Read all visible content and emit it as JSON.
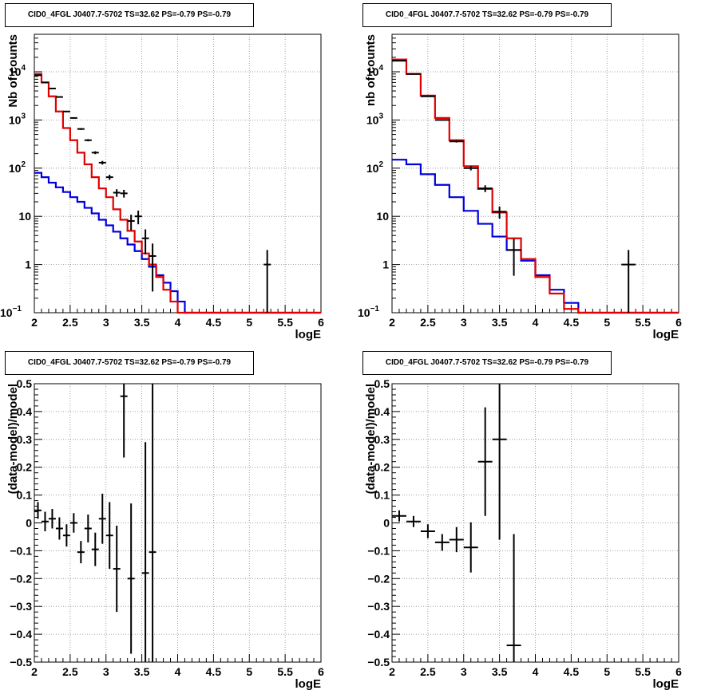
{
  "colors": {
    "data": "#000000",
    "total_model": "#e00000",
    "background_model": "#0000dd",
    "grid": "#888888"
  },
  "chart_data": [
    {
      "type": "line",
      "title": "CID0_4FGL J0407.7-5702 TS=32.62 PS=-0.79 PS=-0.79",
      "xlabel": "logE",
      "ylabel": "Nb of counts",
      "xlim": [
        2,
        6
      ],
      "ylim": [
        0.1,
        60000
      ],
      "yscale": "log",
      "grid": true,
      "xticks": [
        "2",
        "2.5",
        "3",
        "3.5",
        "4",
        "4.5",
        "5",
        "5.5",
        "6"
      ],
      "yticks": [
        {
          "v": 0.1,
          "label": "10",
          "sup": "−1"
        },
        {
          "v": 1,
          "label": "1",
          "sup": ""
        },
        {
          "v": 10,
          "label": "10",
          "sup": ""
        },
        {
          "v": 100,
          "label": "10",
          "sup": "2"
        },
        {
          "v": 1000,
          "label": "10",
          "sup": "3"
        },
        {
          "v": 10000,
          "label": "10",
          "sup": "4"
        }
      ],
      "bin_width": 0.1,
      "series": [
        {
          "role": "total_model",
          "x_start": 2.0,
          "values": [
            9000,
            6000,
            3100,
            1500,
            680,
            380,
            210,
            120,
            65,
            38,
            25,
            14,
            8.5,
            5,
            3,
            1.7,
            1.0,
            0.55,
            0.3,
            0.17,
            0.1,
            0.1,
            0.1,
            0.1,
            0.1,
            0.1,
            0.1,
            0.1,
            0.1,
            0.1,
            0.1,
            0.1,
            0.1,
            0.1,
            0.1,
            0.1,
            0.1,
            0.1,
            0.1,
            0.1
          ]
        },
        {
          "role": "background_model",
          "x_start": 2.0,
          "values": [
            80,
            65,
            50,
            40,
            32,
            25,
            20,
            15,
            11.5,
            8.5,
            6.5,
            4.8,
            3.5,
            2.6,
            1.9,
            1.3,
            0.9,
            0.6,
            0.42,
            0.28,
            0.17,
            0.1,
            0.1,
            0.1,
            0.1,
            0.1,
            0.1,
            0.1,
            0.1,
            0.1,
            0.1,
            0.1,
            0.1,
            0.1,
            0.1,
            0.1,
            0.1,
            0.1,
            0.1,
            0.1
          ]
        },
        {
          "role": "data",
          "points": [
            {
              "x": 2.05,
              "y": 8500
            },
            {
              "x": 2.15,
              "y": 6000
            },
            {
              "x": 2.25,
              "y": 4500
            },
            {
              "x": 2.35,
              "y": 3000
            },
            {
              "x": 2.45,
              "y": 1500
            },
            {
              "x": 2.55,
              "y": 1100
            },
            {
              "x": 2.65,
              "y": 650
            },
            {
              "x": 2.75,
              "y": 380
            },
            {
              "x": 2.85,
              "y": 210
            },
            {
              "x": 2.95,
              "y": 130
            },
            {
              "x": 3.05,
              "y": 65
            },
            {
              "x": 3.15,
              "y": 31
            },
            {
              "x": 3.25,
              "y": 30
            },
            {
              "x": 3.35,
              "y": 8
            },
            {
              "x": 3.45,
              "y": 10
            },
            {
              "x": 3.55,
              "y": 3.5
            },
            {
              "x": 3.65,
              "y": 1.5
            },
            {
              "x": 5.25,
              "y": 1
            }
          ]
        }
      ]
    },
    {
      "type": "line",
      "title": "CID0_4FGL J0407.7-5702 TS=32.62 PS=-0.79 PS=-0.79",
      "xlabel": "logE",
      "ylabel": "nb of counts",
      "xlim": [
        2,
        6
      ],
      "ylim": [
        0.1,
        60000
      ],
      "yscale": "log",
      "grid": true,
      "xticks": [
        "2",
        "2.5",
        "3",
        "3.5",
        "4",
        "4.5",
        "5",
        "5.5",
        "6"
      ],
      "yticks": [
        {
          "v": 0.1,
          "label": "10",
          "sup": "−1"
        },
        {
          "v": 1,
          "label": "1",
          "sup": ""
        },
        {
          "v": 10,
          "label": "10",
          "sup": ""
        },
        {
          "v": 100,
          "label": "10",
          "sup": "2"
        },
        {
          "v": 1000,
          "label": "10",
          "sup": "3"
        },
        {
          "v": 10000,
          "label": "10",
          "sup": "4"
        }
      ],
      "bin_width": 0.2,
      "series": [
        {
          "role": "total_model",
          "x_start": 2.0,
          "values": [
            18000,
            9000,
            3200,
            1100,
            380,
            110,
            37,
            12,
            3.5,
            1.3,
            0.55,
            0.25,
            0.12,
            0.1,
            0.1,
            0.1,
            0.1,
            0.1,
            0.1,
            0.1
          ]
        },
        {
          "role": "background_model",
          "x_start": 2.0,
          "values": [
            150,
            120,
            75,
            45,
            25,
            13,
            7,
            3.8,
            2.0,
            1.2,
            0.6,
            0.3,
            0.16,
            0.1,
            0.1,
            0.1,
            0.1,
            0.1,
            0.1,
            0.1
          ]
        },
        {
          "role": "data",
          "points": [
            {
              "x": 2.1,
              "y": 17000
            },
            {
              "x": 2.3,
              "y": 9000
            },
            {
              "x": 2.5,
              "y": 3100
            },
            {
              "x": 2.7,
              "y": 1000
            },
            {
              "x": 2.9,
              "y": 360
            },
            {
              "x": 3.1,
              "y": 100
            },
            {
              "x": 3.3,
              "y": 38
            },
            {
              "x": 3.5,
              "y": 12.5
            },
            {
              "x": 3.7,
              "y": 2
            },
            {
              "x": 5.3,
              "y": 1
            }
          ]
        }
      ]
    },
    {
      "type": "scatter",
      "title": "CID0_4FGL J0407.7-5702 TS=32.62 PS=-0.79 PS=-0.79",
      "xlabel": "logE",
      "ylabel": "(data-model)/model",
      "xlim": [
        2,
        6
      ],
      "ylim": [
        -0.5,
        0.5
      ],
      "grid": true,
      "xticks": [
        "2",
        "2.5",
        "3",
        "3.5",
        "4",
        "4.5",
        "5",
        "5.5",
        "6"
      ],
      "yticks": [
        "-0.5",
        "-0.4",
        "-0.3",
        "-0.2",
        "-0.1",
        "0",
        "0.1",
        "0.2",
        "0.3",
        "0.4",
        "0.5"
      ],
      "x_halfwidth": 0.05,
      "points": [
        {
          "x": 2.05,
          "y": 0.045,
          "err": 0.03
        },
        {
          "x": 2.15,
          "y": 0.005,
          "err": 0.035
        },
        {
          "x": 2.25,
          "y": 0.015,
          "err": 0.035
        },
        {
          "x": 2.35,
          "y": -0.02,
          "err": 0.04
        },
        {
          "x": 2.45,
          "y": -0.045,
          "err": 0.04
        },
        {
          "x": 2.55,
          "y": 0.0,
          "err": 0.035
        },
        {
          "x": 2.65,
          "y": -0.105,
          "err": 0.04
        },
        {
          "x": 2.75,
          "y": -0.02,
          "err": 0.05
        },
        {
          "x": 2.85,
          "y": -0.095,
          "err": 0.06
        },
        {
          "x": 2.95,
          "y": 0.015,
          "err": 0.09
        },
        {
          "x": 3.05,
          "y": -0.045,
          "err": 0.12
        },
        {
          "x": 3.15,
          "y": -0.165,
          "err": 0.155
        },
        {
          "x": 3.25,
          "y": 0.455,
          "err": 0.22
        },
        {
          "x": 3.35,
          "y": -0.2,
          "err": 0.27
        },
        {
          "x": 3.55,
          "y": -0.18,
          "err": 0.47
        },
        {
          "x": 3.65,
          "y": -0.105,
          "err": 0.75
        }
      ]
    },
    {
      "type": "scatter",
      "title": "CID0_4FGL J0407.7-5702 TS=32.62 PS=-0.79 PS=-0.79",
      "xlabel": "logE",
      "ylabel": "(data-model)/model",
      "xlim": [
        2,
        6
      ],
      "ylim": [
        -0.5,
        0.5
      ],
      "grid": true,
      "xticks": [
        "2",
        "2.5",
        "3",
        "3.5",
        "4",
        "4.5",
        "5",
        "5.5",
        "6"
      ],
      "yticks": [
        "-0.5",
        "-0.4",
        "-0.3",
        "-0.2",
        "-0.1",
        "0",
        "0.1",
        "0.2",
        "0.3",
        "0.4",
        "0.5"
      ],
      "x_halfwidth": 0.1,
      "points": [
        {
          "x": 2.1,
          "y": 0.025,
          "err": 0.02
        },
        {
          "x": 2.3,
          "y": 0.005,
          "err": 0.02
        },
        {
          "x": 2.5,
          "y": -0.03,
          "err": 0.025
        },
        {
          "x": 2.7,
          "y": -0.07,
          "err": 0.03
        },
        {
          "x": 2.9,
          "y": -0.06,
          "err": 0.045
        },
        {
          "x": 3.1,
          "y": -0.088,
          "err": 0.09
        },
        {
          "x": 3.3,
          "y": 0.22,
          "err": 0.195
        },
        {
          "x": 3.5,
          "y": 0.3,
          "err": 0.36
        },
        {
          "x": 3.7,
          "y": -0.44,
          "err": 0.4
        }
      ]
    }
  ]
}
